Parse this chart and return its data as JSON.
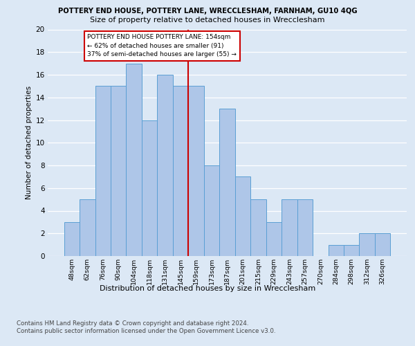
{
  "title": "POTTERY END HOUSE, POTTERY LANE, WRECCLESHAM, FARNHAM, GU10 4QG",
  "subtitle": "Size of property relative to detached houses in Wrecclesham",
  "xlabel": "Distribution of detached houses by size in Wrecclesham",
  "ylabel": "Number of detached properties",
  "bar_labels": [
    "48sqm",
    "62sqm",
    "76sqm",
    "90sqm",
    "104sqm",
    "118sqm",
    "131sqm",
    "145sqm",
    "159sqm",
    "173sqm",
    "187sqm",
    "201sqm",
    "215sqm",
    "229sqm",
    "243sqm",
    "257sqm",
    "270sqm",
    "284sqm",
    "298sqm",
    "312sqm",
    "326sqm"
  ],
  "bar_values": [
    3,
    5,
    15,
    15,
    17,
    12,
    16,
    15,
    15,
    8,
    13,
    7,
    5,
    3,
    5,
    5,
    0,
    1,
    1,
    2,
    2
  ],
  "bar_color": "#aec6e8",
  "bar_edge_color": "#5a9fd4",
  "vline_x_index": 7.5,
  "vline_color": "#cc0000",
  "annotation_text": "POTTERY END HOUSE POTTERY LANE: 154sqm\n← 62% of detached houses are smaller (91)\n37% of semi-detached houses are larger (55) →",
  "annotation_box_color": "#ffffff",
  "annotation_box_edge_color": "#cc0000",
  "ylim": [
    0,
    20
  ],
  "yticks": [
    0,
    2,
    4,
    6,
    8,
    10,
    12,
    14,
    16,
    18,
    20
  ],
  "footer1": "Contains HM Land Registry data © Crown copyright and database right 2024.",
  "footer2": "Contains public sector information licensed under the Open Government Licence v3.0.",
  "background_color": "#dce8f5",
  "plot_bg_color": "#dce8f5"
}
